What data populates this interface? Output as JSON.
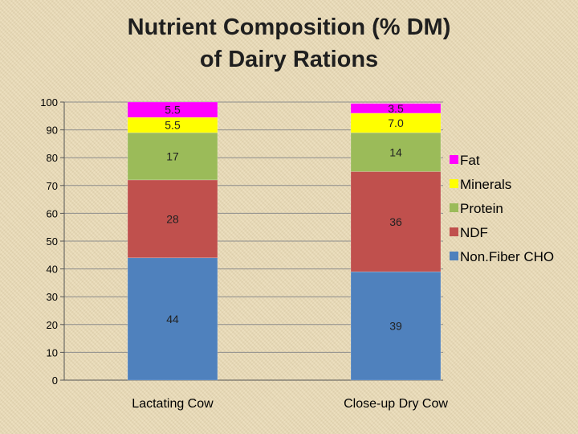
{
  "chart_data": {
    "type": "bar",
    "stacked": true,
    "title_lines": [
      "Nutrient Composition (% DM)",
      "of Dairy Rations"
    ],
    "categories": [
      "Lactating Cow",
      "Close-up Dry Cow"
    ],
    "series": [
      {
        "name": "Non.Fiber CHO",
        "color": "#4f81bd",
        "values": [
          44,
          39
        ],
        "labels": [
          "44",
          "39"
        ]
      },
      {
        "name": "NDF",
        "color": "#c0504d",
        "values": [
          28,
          36
        ],
        "labels": [
          "28",
          "36"
        ]
      },
      {
        "name": "Protein",
        "color": "#9bbb59",
        "values": [
          17,
          14
        ],
        "labels": [
          "17",
          "14"
        ]
      },
      {
        "name": "Minerals",
        "color": "#ffff00",
        "values": [
          5.5,
          7.0
        ],
        "labels": [
          "5.5",
          "7.0"
        ]
      },
      {
        "name": "Fat",
        "color": "#ff00ff",
        "values": [
          5.5,
          3.5
        ],
        "labels": [
          "5.5",
          "3.5"
        ]
      }
    ],
    "legend_order": [
      "Fat",
      "Minerals",
      "Protein",
      "NDF",
      "Non.Fiber CHO"
    ],
    "ylim": [
      0,
      100
    ],
    "yticks": [
      0,
      10,
      20,
      30,
      40,
      50,
      60,
      70,
      80,
      90,
      100
    ],
    "grid": true,
    "legend_position": "right"
  }
}
